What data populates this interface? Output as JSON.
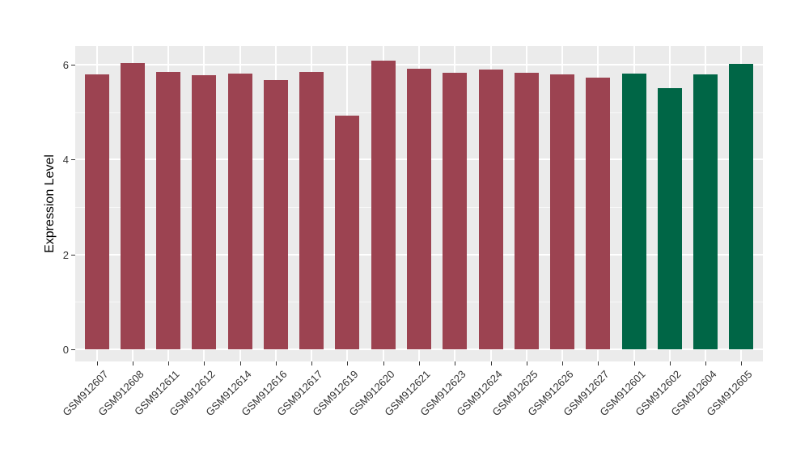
{
  "page": {
    "background_color": "#FFFFFF"
  },
  "colors": {
    "bar_red": "#9C4351",
    "bar_green": "#006646",
    "panel_background": "#EBEBEB",
    "gridline": "#FFFFFF",
    "axis_text": "#333333",
    "axis_title": "#000000"
  },
  "chart_data": {
    "type": "bar",
    "title": "",
    "xlabel": "",
    "ylabel": "Expression Level",
    "ylim": [
      0,
      6.4
    ],
    "grid": true,
    "legend": false,
    "y_major_ticks": [
      0,
      2,
      4,
      6
    ],
    "y_tick_labels": [
      "0",
      "2",
      "4",
      "6"
    ],
    "y_minor_gridlines": [
      1,
      3,
      5
    ],
    "categories": [
      "GSM912607",
      "GSM912608",
      "GSM912611",
      "GSM912612",
      "GSM912614",
      "GSM912616",
      "GSM912617",
      "GSM912619",
      "GSM912620",
      "GSM912621",
      "GSM912623",
      "GSM912624",
      "GSM912625",
      "GSM912626",
      "GSM912627",
      "GSM912601",
      "GSM912602",
      "GSM912604",
      "GSM912605"
    ],
    "values": [
      5.8,
      6.03,
      5.85,
      5.78,
      5.81,
      5.67,
      5.85,
      4.93,
      6.09,
      5.92,
      5.83,
      5.89,
      5.83,
      5.79,
      5.73,
      5.82,
      5.5,
      5.8,
      6.02
    ],
    "bar_groups": [
      "red",
      "red",
      "red",
      "red",
      "red",
      "red",
      "red",
      "red",
      "red",
      "red",
      "red",
      "red",
      "red",
      "red",
      "red",
      "green",
      "green",
      "green",
      "green"
    ],
    "group_colors": {
      "red": "#9C4351",
      "green": "#006646"
    }
  }
}
